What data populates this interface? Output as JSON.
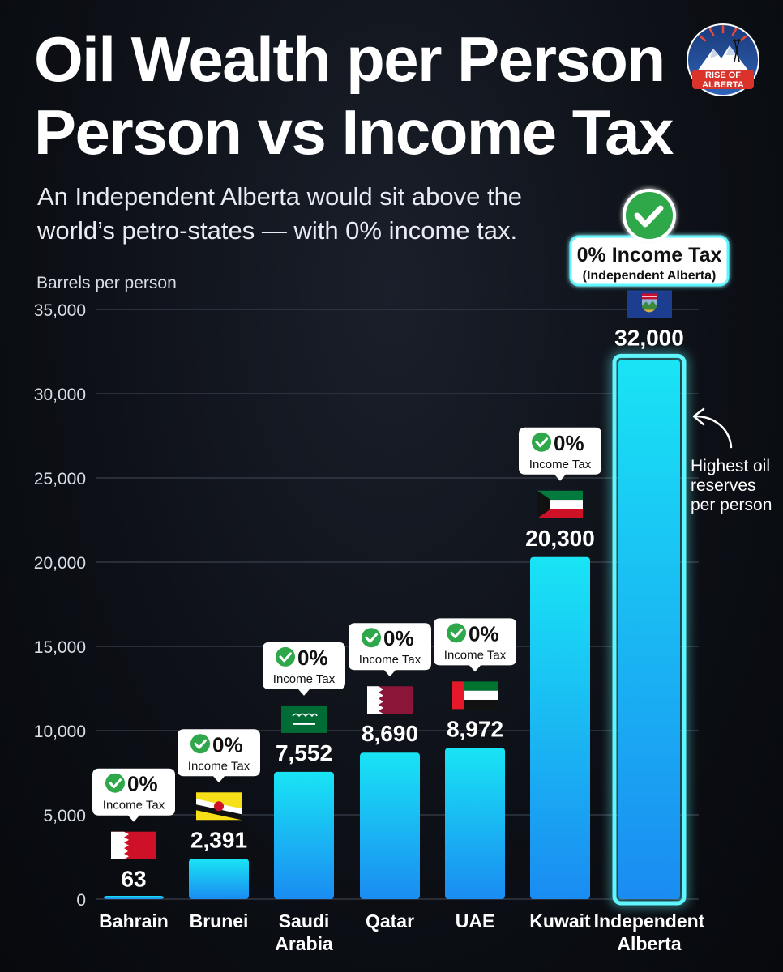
{
  "header": {
    "title_line1": "Oil Wealth per Person",
    "title_line2": "Person vs Income Tax",
    "subtitle_line1": "An Independent Alberta would sit above the",
    "subtitle_line2": "world’s petro-states — with 0% income tax.",
    "logo_line1": "RISE OF",
    "logo_line2": "ALBERTA"
  },
  "chart_data": {
    "type": "bar",
    "ylabel": "Barrels per person",
    "ylim": [
      0,
      35000
    ],
    "yticks": [
      0,
      5000,
      10000,
      15000,
      20000,
      25000,
      30000,
      35000
    ],
    "ytick_labels": [
      "0",
      "5,000",
      "10,000",
      "15,000",
      "20,000",
      "25,000",
      "30,000",
      "35,000"
    ],
    "grid": true,
    "categories": [
      {
        "line1": "Bahrain",
        "line2": ""
      },
      {
        "line1": "Brunei",
        "line2": ""
      },
      {
        "line1": "Saudi",
        "line2": "Arabia"
      },
      {
        "line1": "Qatar",
        "line2": ""
      },
      {
        "line1": "UAE",
        "line2": ""
      },
      {
        "line1": "Kuwait",
        "line2": ""
      },
      {
        "line1": "Independent",
        "line2": "Alberta"
      }
    ],
    "values": [
      63,
      2391,
      7552,
      8690,
      8972,
      20300,
      32000
    ],
    "value_labels": [
      "63",
      "2,391",
      "7,552",
      "8,690",
      "8,972",
      "20,300",
      "32,000"
    ],
    "flags": [
      "bahrain-flag",
      "brunei-flag",
      "saudi-arabia-flag",
      "qatar-flag",
      "uae-flag",
      "kuwait-flag",
      "alberta-flag"
    ],
    "tax_badge": {
      "percent": "0%",
      "label": "Income Tax"
    },
    "highlight_badge": {
      "line1": "0% Income Tax",
      "line2": "(Independent Alberta)"
    },
    "annotation": [
      "Highest oil",
      "reserves",
      "per person"
    ],
    "colors": {
      "bar_top": "#19e4f4",
      "bar_bottom": "#1a8cf2",
      "highlight_glow": "#5ff6ff",
      "check": "#2ea84a",
      "grid": "#3a404c"
    }
  }
}
